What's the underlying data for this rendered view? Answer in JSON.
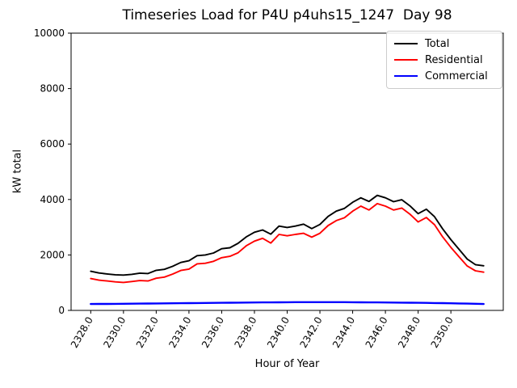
{
  "title": "Timeseries Load for P4U p4uhs15_1247  Day 98",
  "chart_data": {
    "type": "line",
    "title": "Timeseries Load for P4U p4uhs15_1247  Day 98",
    "xlabel": "Hour of Year",
    "ylabel": "kW total",
    "xlim": [
      2326.8,
      2353.2
    ],
    "ylim": [
      0,
      10000
    ],
    "grid": false,
    "legend_position": "upper right",
    "x_ticks": [
      2328,
      2330,
      2332,
      2334,
      2336,
      2338,
      2340,
      2342,
      2344,
      2346,
      2348,
      2350
    ],
    "x_tick_labels": [
      "2328.0",
      "2330.0",
      "2332.0",
      "2334.0",
      "2336.0",
      "2338.0",
      "2340.0",
      "2342.0",
      "2344.0",
      "2346.0",
      "2348.0",
      "2350.0"
    ],
    "y_ticks": [
      0,
      2000,
      4000,
      6000,
      8000,
      10000
    ],
    "y_tick_labels": [
      "0",
      "2000",
      "4000",
      "6000",
      "8000",
      "10000"
    ],
    "x": [
      2328,
      2328.5,
      2329,
      2329.5,
      2330,
      2330.5,
      2331,
      2331.5,
      2332,
      2332.5,
      2333,
      2333.5,
      2334,
      2334.5,
      2335,
      2335.5,
      2336,
      2336.5,
      2337,
      2337.5,
      2338,
      2338.5,
      2339,
      2339.5,
      2340,
      2340.5,
      2341,
      2341.5,
      2342,
      2342.5,
      2343,
      2343.5,
      2344,
      2344.5,
      2345,
      2345.5,
      2346,
      2346.5,
      2347,
      2347.5,
      2348,
      2348.5,
      2349,
      2349.5,
      2350,
      2350.5,
      2351,
      2351.5,
      2352
    ],
    "series": [
      {
        "name": "Total",
        "color": "#000000",
        "values": [
          1410,
          1350,
          1315,
          1285,
          1275,
          1300,
          1345,
          1330,
          1445,
          1480,
          1590,
          1730,
          1790,
          1975,
          2000,
          2070,
          2225,
          2260,
          2420,
          2650,
          2820,
          2900,
          2750,
          3040,
          2990,
          3040,
          3110,
          2950,
          3100,
          3390,
          3580,
          3680,
          3900,
          4060,
          3930,
          4150,
          4060,
          3920,
          3990,
          3770,
          3490,
          3650,
          3380,
          2940,
          2550,
          2200,
          1850,
          1650,
          1610
        ]
      },
      {
        "name": "Residential",
        "color": "#ff0000",
        "values": [
          1150,
          1090,
          1060,
          1030,
          1010,
          1040,
          1075,
          1060,
          1160,
          1200,
          1310,
          1440,
          1490,
          1680,
          1700,
          1770,
          1900,
          1950,
          2080,
          2330,
          2500,
          2600,
          2430,
          2740,
          2690,
          2740,
          2780,
          2640,
          2780,
          3060,
          3240,
          3340,
          3580,
          3760,
          3620,
          3850,
          3760,
          3620,
          3690,
          3470,
          3190,
          3350,
          3090,
          2650,
          2270,
          1930,
          1600,
          1430,
          1380
        ]
      },
      {
        "name": "Commercial",
        "color": "#0000ff",
        "values": [
          230,
          232,
          234,
          236,
          238,
          241,
          244,
          247,
          250,
          253,
          256,
          259,
          262,
          265,
          268,
          271,
          274,
          277,
          280,
          283,
          286,
          288,
          290,
          292,
          294,
          296,
          297,
          298,
          298,
          298,
          297,
          296,
          294,
          292,
          290,
          288,
          286,
          283,
          280,
          277,
          274,
          270,
          266,
          262,
          257,
          252,
          246,
          238,
          230
        ]
      }
    ]
  }
}
